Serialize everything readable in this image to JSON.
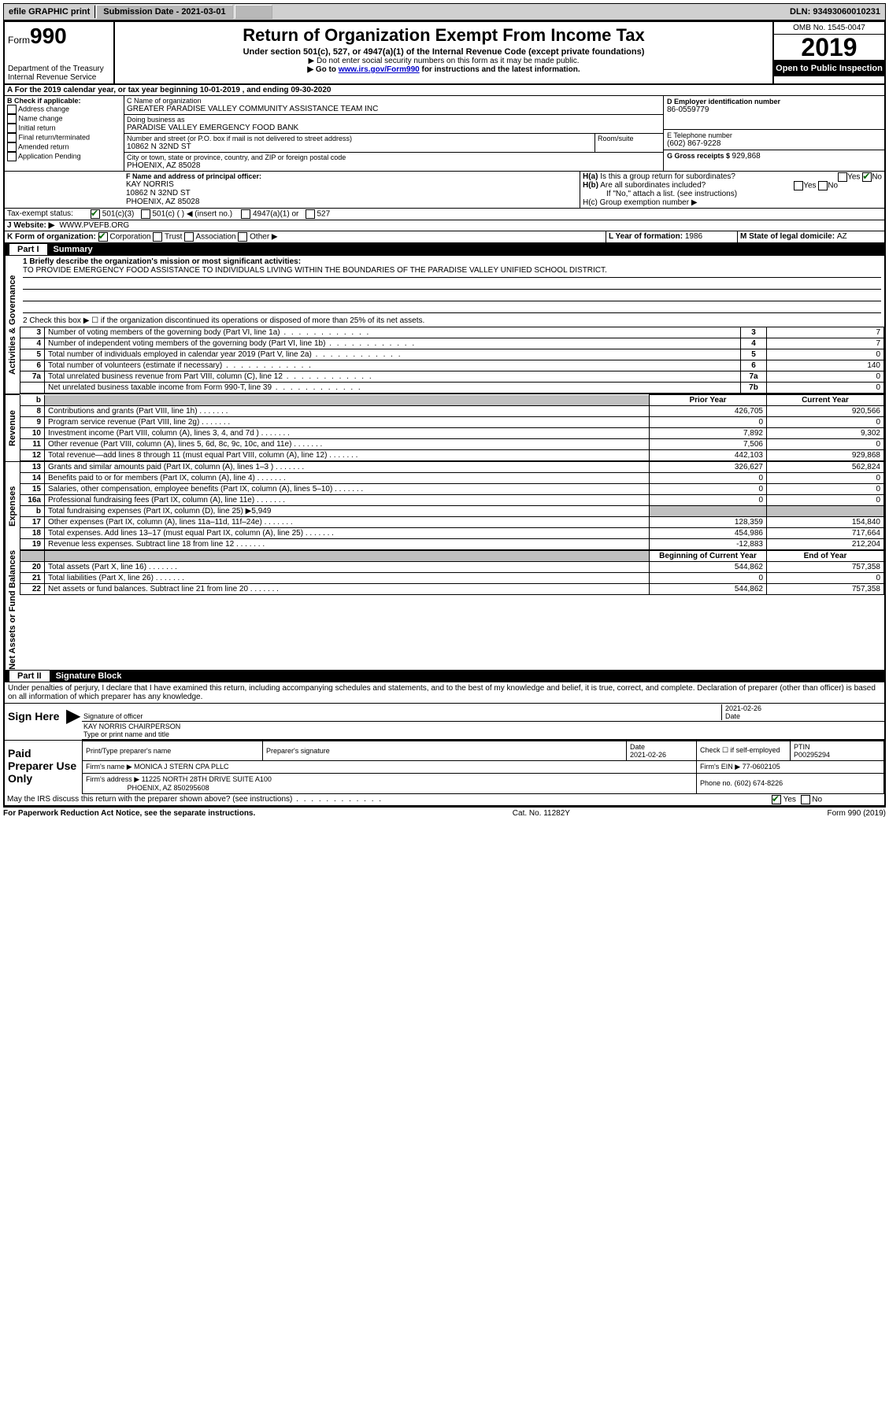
{
  "topbar": {
    "efile": "efile GRAPHIC print",
    "submission_label": "Submission Date - 2021-03-01",
    "dln": "DLN: 93493060010231"
  },
  "header": {
    "form_prefix": "Form",
    "form_number": "990",
    "dept": "Department of the Treasury\nInternal Revenue Service",
    "title": "Return of Organization Exempt From Income Tax",
    "subtitle": "Under section 501(c), 527, or 4947(a)(1) of the Internal Revenue Code (except private foundations)",
    "note1": "▶ Do not enter social security numbers on this form as it may be made public.",
    "note2_pre": "▶ Go to ",
    "note2_link": "www.irs.gov/Form990",
    "note2_post": " for instructions and the latest information.",
    "omb": "OMB No. 1545-0047",
    "year": "2019",
    "inspection": "Open to Public Inspection"
  },
  "line_a": "A For the 2019 calendar year, or tax year beginning 10-01-2019   , and ending 09-30-2020",
  "box_b": {
    "title": "B Check if applicable:",
    "items": [
      "Address change",
      "Name change",
      "Initial return",
      "Final return/terminated",
      "Amended return",
      "Application Pending"
    ]
  },
  "box_c": {
    "label_name": "C Name of organization",
    "org_name": "GREATER PARADISE VALLEY COMMUNITY ASSISTANCE TEAM INC",
    "dba_label": "Doing business as",
    "dba": "PARADISE VALLEY EMERGENCY FOOD BANK",
    "street_label": "Number and street (or P.O. box if mail is not delivered to street address)",
    "room_label": "Room/suite",
    "street": "10862 N 32ND ST",
    "city_label": "City or town, state or province, country, and ZIP or foreign postal code",
    "city": "PHOENIX, AZ  85028"
  },
  "box_d": {
    "label": "D Employer identification number",
    "value": "86-0559779"
  },
  "box_e": {
    "label": "E Telephone number",
    "value": "(602) 867-9228"
  },
  "box_g": {
    "label": "G Gross receipts $ ",
    "value": "929,868"
  },
  "box_f": {
    "label": "F  Name and address of principal officer:",
    "name": "KAY NORRIS",
    "addr1": "10862 N 32ND ST",
    "addr2": "PHOENIX, AZ  85028"
  },
  "box_h": {
    "a_label": "H(a)  Is this a group return for subordinates?",
    "b_label": "H(b)  Are all subordinates included?",
    "b_note": "If \"No,\" attach a list. (see instructions)",
    "c_label": "H(c)  Group exemption number ▶",
    "yes": "Yes",
    "no": "No"
  },
  "tax_status": {
    "label": "Tax-exempt status:",
    "opt1": "501(c)(3)",
    "opt2": "501(c) (  ) ◀ (insert no.)",
    "opt3": "4947(a)(1) or",
    "opt4": "527"
  },
  "box_j": {
    "label": "J   Website: ▶",
    "value": "WWW.PVEFB.ORG"
  },
  "box_k": {
    "label": "K Form of organization:",
    "opts": [
      "Corporation",
      "Trust",
      "Association",
      "Other ▶"
    ]
  },
  "box_l": {
    "label": "L Year of formation: ",
    "value": "1986"
  },
  "box_m": {
    "label": "M State of legal domicile: ",
    "value": "AZ"
  },
  "part1": {
    "title": "Part I",
    "name": "Summary",
    "line1_label": "1  Briefly describe the organization's mission or most significant activities:",
    "line1_text": "TO PROVIDE EMERGENCY FOOD ASSISTANCE TO INDIVIDUALS LIVING WITHIN THE BOUNDARIES OF THE PARADISE VALLEY UNIFIED SCHOOL DISTRICT.",
    "line2": "2    Check this box ▶ ☐  if the organization discontinued its operations or disposed of more than 25% of its net assets.",
    "sections": {
      "governance": "Activities & Governance",
      "revenue": "Revenue",
      "expenses": "Expenses",
      "netassets": "Net Assets or Fund Balances"
    },
    "gov_lines": [
      {
        "n": "3",
        "d": "Number of voting members of the governing body (Part VI, line 1a)",
        "b": "3",
        "v": "7"
      },
      {
        "n": "4",
        "d": "Number of independent voting members of the governing body (Part VI, line 1b)",
        "b": "4",
        "v": "7"
      },
      {
        "n": "5",
        "d": "Total number of individuals employed in calendar year 2019 (Part V, line 2a)",
        "b": "5",
        "v": "0"
      },
      {
        "n": "6",
        "d": "Total number of volunteers (estimate if necessary)",
        "b": "6",
        "v": "140"
      },
      {
        "n": "7a",
        "d": "Total unrelated business revenue from Part VIII, column (C), line 12",
        "b": "7a",
        "v": "0"
      },
      {
        "n": "",
        "d": "Net unrelated business taxable income from Form 990-T, line 39",
        "b": "7b",
        "v": "0"
      }
    ],
    "col_headers": {
      "prior": "Prior Year",
      "current": "Current Year"
    },
    "rev_lines": [
      {
        "n": "8",
        "d": "Contributions and grants (Part VIII, line 1h)",
        "p": "426,705",
        "c": "920,566"
      },
      {
        "n": "9",
        "d": "Program service revenue (Part VIII, line 2g)",
        "p": "0",
        "c": "0"
      },
      {
        "n": "10",
        "d": "Investment income (Part VIII, column (A), lines 3, 4, and 7d )",
        "p": "7,892",
        "c": "9,302"
      },
      {
        "n": "11",
        "d": "Other revenue (Part VIII, column (A), lines 5, 6d, 8c, 9c, 10c, and 11e)",
        "p": "7,506",
        "c": "0"
      },
      {
        "n": "12",
        "d": "Total revenue—add lines 8 through 11 (must equal Part VIII, column (A), line 12)",
        "p": "442,103",
        "c": "929,868"
      }
    ],
    "exp_lines": [
      {
        "n": "13",
        "d": "Grants and similar amounts paid (Part IX, column (A), lines 1–3 )",
        "p": "326,627",
        "c": "562,824"
      },
      {
        "n": "14",
        "d": "Benefits paid to or for members (Part IX, column (A), line 4)",
        "p": "0",
        "c": "0"
      },
      {
        "n": "15",
        "d": "Salaries, other compensation, employee benefits (Part IX, column (A), lines 5–10)",
        "p": "0",
        "c": "0"
      },
      {
        "n": "16a",
        "d": "Professional fundraising fees (Part IX, column (A), line 11e)",
        "p": "0",
        "c": "0"
      },
      {
        "n": "b",
        "d": "Total fundraising expenses (Part IX, column (D), line 25) ▶5,949",
        "p": "",
        "c": "",
        "shade": true
      },
      {
        "n": "17",
        "d": "Other expenses (Part IX, column (A), lines 11a–11d, 11f–24e)",
        "p": "128,359",
        "c": "154,840"
      },
      {
        "n": "18",
        "d": "Total expenses. Add lines 13–17 (must equal Part IX, column (A), line 25)",
        "p": "454,986",
        "c": "717,664"
      },
      {
        "n": "19",
        "d": "Revenue less expenses. Subtract line 18 from line 12",
        "p": "-12,883",
        "c": "212,204"
      }
    ],
    "net_headers": {
      "begin": "Beginning of Current Year",
      "end": "End of Year"
    },
    "net_lines": [
      {
        "n": "20",
        "d": "Total assets (Part X, line 16)",
        "p": "544,862",
        "c": "757,358"
      },
      {
        "n": "21",
        "d": "Total liabilities (Part X, line 26)",
        "p": "0",
        "c": "0"
      },
      {
        "n": "22",
        "d": "Net assets or fund balances. Subtract line 21 from line 20",
        "p": "544,862",
        "c": "757,358"
      }
    ]
  },
  "part2": {
    "title": "Part II",
    "name": "Signature Block",
    "jurat": "Under penalties of perjury, I declare that I have examined this return, including accompanying schedules and statements, and to the best of my knowledge and belief, it is true, correct, and complete. Declaration of preparer (other than officer) is based on all information of which preparer has any knowledge.",
    "sign_here": "Sign Here",
    "sig_officer": "Signature of officer",
    "sig_date_label": "Date",
    "sig_date": "2021-02-26",
    "sig_name": "KAY NORRIS  CHAIRPERSON",
    "sig_name_label": "Type or print name and title",
    "paid": "Paid Preparer Use Only",
    "prep_name_label": "Print/Type preparer's name",
    "prep_sig_label": "Preparer's signature",
    "prep_date_label": "Date",
    "prep_date": "2021-02-26",
    "prep_check": "Check ☐ if self-employed",
    "ptin_label": "PTIN",
    "ptin": "P00295294",
    "firm_name_label": "Firm's name    ▶",
    "firm_name": "MONICA J STERN CPA PLLC",
    "firm_ein_label": "Firm's EIN ▶",
    "firm_ein": "77-0602105",
    "firm_addr_label": "Firm's address ▶",
    "firm_addr1": "11225 NORTH 28TH DRIVE SUITE A100",
    "firm_addr2": "PHOENIX, AZ  850295608",
    "phone_label": "Phone no.",
    "phone": "(602) 674-8226",
    "discuss": "May the IRS discuss this return with the preparer shown above? (see instructions)"
  },
  "footer": {
    "left": "For Paperwork Reduction Act Notice, see the separate instructions.",
    "mid": "Cat. No. 11282Y",
    "right": "Form 990 (2019)"
  }
}
